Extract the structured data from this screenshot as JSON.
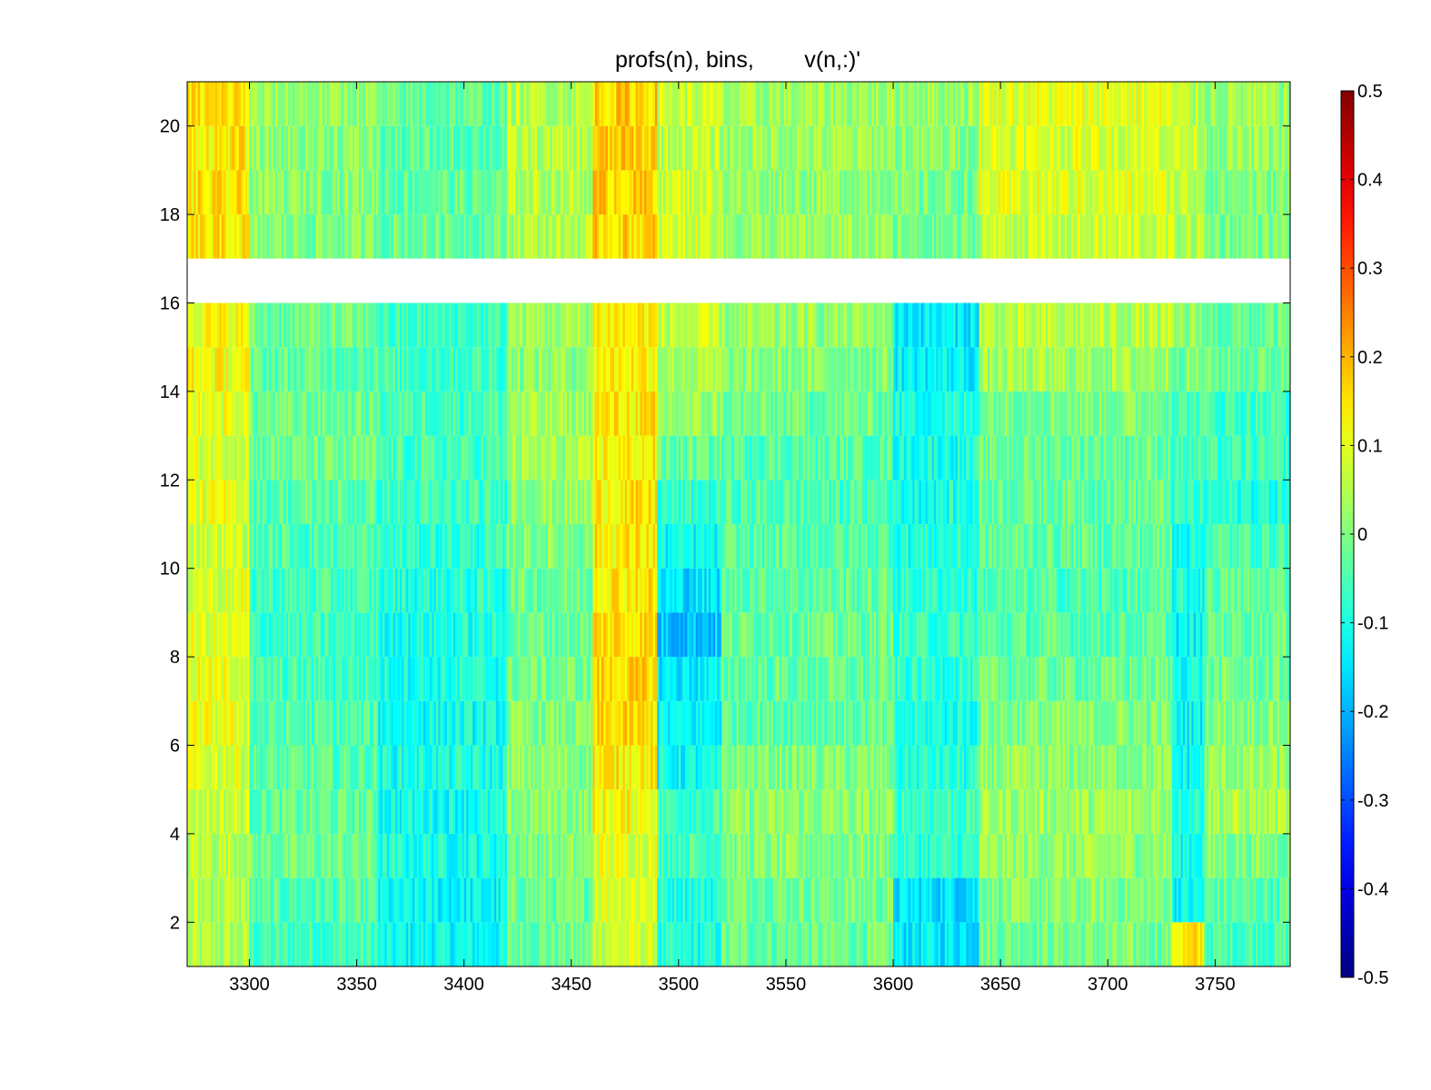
{
  "chart_data": {
    "type": "heatmap",
    "title": "profs(n), bins,        v(n,:)'",
    "xlabel": "",
    "ylabel": "",
    "xlim": [
      3271,
      3785
    ],
    "ylim": [
      1,
      21
    ],
    "x_ticks": [
      3300,
      3350,
      3400,
      3450,
      3500,
      3550,
      3600,
      3650,
      3700,
      3750
    ],
    "y_ticks": [
      2,
      4,
      6,
      8,
      10,
      12,
      14,
      16,
      18,
      20
    ],
    "colorbar": {
      "colormap": "jet",
      "clim": [
        -0.5,
        0.5
      ],
      "ticks": [
        0.5,
        0.4,
        0.3,
        0.2,
        0.1,
        0,
        -0.1,
        -0.2,
        -0.3,
        -0.4,
        -0.5
      ],
      "tick_labels": [
        "0.5",
        "0.4",
        "0.3",
        "0.2",
        "0.1",
        "0",
        "-0.1",
        "-0.2",
        "-0.3",
        "-0.4",
        "-0.5"
      ]
    },
    "missing_bins": [
      16
    ],
    "columns_x_range": [
      3271,
      3785
    ],
    "column_count": 514,
    "bins": [
      {
        "bin": 1,
        "base": 0.0,
        "segments": [
          [
            3271,
            3300,
            0.04
          ],
          [
            3300,
            3360,
            -0.06
          ],
          [
            3360,
            3420,
            -0.12
          ],
          [
            3420,
            3460,
            -0.02
          ],
          [
            3460,
            3490,
            0.08
          ],
          [
            3490,
            3520,
            -0.1
          ],
          [
            3520,
            3600,
            -0.02
          ],
          [
            3600,
            3640,
            -0.14
          ],
          [
            3640,
            3730,
            -0.01
          ],
          [
            3730,
            3745,
            0.14
          ],
          [
            3745,
            3785,
            -0.05
          ]
        ]
      },
      {
        "bin": 2,
        "base": 0.0,
        "segments": [
          [
            3271,
            3300,
            0.05
          ],
          [
            3300,
            3360,
            -0.05
          ],
          [
            3360,
            3420,
            -0.13
          ],
          [
            3420,
            3460,
            -0.02
          ],
          [
            3460,
            3490,
            0.1
          ],
          [
            3490,
            3520,
            -0.09
          ],
          [
            3520,
            3600,
            -0.01
          ],
          [
            3600,
            3640,
            -0.15
          ],
          [
            3640,
            3730,
            0.0
          ],
          [
            3730,
            3745,
            -0.12
          ],
          [
            3745,
            3785,
            -0.04
          ]
        ]
      },
      {
        "bin": 3,
        "base": 0.0,
        "segments": [
          [
            3271,
            3300,
            0.06
          ],
          [
            3300,
            3360,
            -0.02
          ],
          [
            3360,
            3420,
            -0.1
          ],
          [
            3420,
            3460,
            0.0
          ],
          [
            3460,
            3490,
            0.1
          ],
          [
            3490,
            3520,
            -0.05
          ],
          [
            3520,
            3600,
            0.0
          ],
          [
            3600,
            3640,
            -0.08
          ],
          [
            3640,
            3730,
            0.02
          ],
          [
            3730,
            3745,
            -0.1
          ],
          [
            3745,
            3785,
            0.0
          ]
        ]
      },
      {
        "bin": 4,
        "base": 0.01,
        "segments": [
          [
            3271,
            3300,
            0.07
          ],
          [
            3300,
            3360,
            -0.03
          ],
          [
            3360,
            3420,
            -0.11
          ],
          [
            3420,
            3460,
            0.01
          ],
          [
            3460,
            3490,
            0.12
          ],
          [
            3490,
            3520,
            -0.06
          ],
          [
            3520,
            3600,
            0.01
          ],
          [
            3600,
            3640,
            -0.06
          ],
          [
            3640,
            3730,
            0.03
          ],
          [
            3730,
            3745,
            -0.08
          ],
          [
            3745,
            3785,
            0.04
          ]
        ]
      },
      {
        "bin": 5,
        "base": 0.01,
        "segments": [
          [
            3271,
            3300,
            0.09
          ],
          [
            3300,
            3360,
            -0.04
          ],
          [
            3360,
            3420,
            -0.1
          ],
          [
            3420,
            3460,
            0.01
          ],
          [
            3460,
            3490,
            0.14
          ],
          [
            3490,
            3520,
            -0.12
          ],
          [
            3520,
            3600,
            0.0
          ],
          [
            3600,
            3640,
            -0.09
          ],
          [
            3640,
            3730,
            0.01
          ],
          [
            3730,
            3745,
            -0.12
          ],
          [
            3745,
            3785,
            0.02
          ]
        ]
      },
      {
        "bin": 6,
        "base": 0.01,
        "segments": [
          [
            3271,
            3300,
            0.1
          ],
          [
            3300,
            3360,
            -0.05
          ],
          [
            3360,
            3420,
            -0.11
          ],
          [
            3420,
            3460,
            0.0
          ],
          [
            3460,
            3490,
            0.15
          ],
          [
            3490,
            3520,
            -0.13
          ],
          [
            3520,
            3600,
            -0.03
          ],
          [
            3600,
            3640,
            -0.1
          ],
          [
            3640,
            3730,
            0.0
          ],
          [
            3730,
            3745,
            -0.12
          ],
          [
            3745,
            3785,
            0.01
          ]
        ]
      },
      {
        "bin": 7,
        "base": 0.0,
        "segments": [
          [
            3271,
            3300,
            0.1
          ],
          [
            3300,
            3360,
            -0.06
          ],
          [
            3360,
            3420,
            -0.1
          ],
          [
            3420,
            3460,
            -0.01
          ],
          [
            3460,
            3490,
            0.16
          ],
          [
            3490,
            3520,
            -0.14
          ],
          [
            3520,
            3600,
            -0.03
          ],
          [
            3600,
            3640,
            -0.08
          ],
          [
            3640,
            3730,
            -0.02
          ],
          [
            3730,
            3745,
            -0.1
          ],
          [
            3745,
            3785,
            -0.02
          ]
        ]
      },
      {
        "bin": 8,
        "base": 0.0,
        "segments": [
          [
            3271,
            3300,
            0.09
          ],
          [
            3300,
            3360,
            -0.07
          ],
          [
            3360,
            3420,
            -0.1
          ],
          [
            3420,
            3460,
            -0.02
          ],
          [
            3460,
            3490,
            0.16
          ],
          [
            3490,
            3520,
            -0.18
          ],
          [
            3520,
            3600,
            -0.02
          ],
          [
            3600,
            3640,
            -0.07
          ],
          [
            3640,
            3730,
            -0.04
          ],
          [
            3730,
            3745,
            -0.13
          ],
          [
            3745,
            3785,
            -0.02
          ]
        ]
      },
      {
        "bin": 9,
        "base": 0.0,
        "segments": [
          [
            3271,
            3300,
            0.09
          ],
          [
            3300,
            3360,
            -0.06
          ],
          [
            3360,
            3420,
            -0.09
          ],
          [
            3420,
            3460,
            -0.02
          ],
          [
            3460,
            3490,
            0.15
          ],
          [
            3490,
            3520,
            -0.15
          ],
          [
            3520,
            3600,
            -0.03
          ],
          [
            3600,
            3640,
            -0.08
          ],
          [
            3640,
            3730,
            -0.05
          ],
          [
            3730,
            3745,
            -0.1
          ],
          [
            3745,
            3785,
            -0.03
          ]
        ]
      },
      {
        "bin": 10,
        "base": 0.0,
        "segments": [
          [
            3271,
            3300,
            0.08
          ],
          [
            3300,
            3360,
            -0.05
          ],
          [
            3360,
            3420,
            -0.08
          ],
          [
            3420,
            3460,
            0.0
          ],
          [
            3460,
            3490,
            0.14
          ],
          [
            3490,
            3520,
            -0.12
          ],
          [
            3520,
            3600,
            -0.04
          ],
          [
            3600,
            3640,
            -0.09
          ],
          [
            3640,
            3730,
            -0.03
          ],
          [
            3730,
            3745,
            -0.1
          ],
          [
            3745,
            3785,
            -0.05
          ]
        ]
      },
      {
        "bin": 11,
        "base": 0.0,
        "segments": [
          [
            3271,
            3300,
            0.1
          ],
          [
            3300,
            3360,
            -0.04
          ],
          [
            3360,
            3420,
            -0.07
          ],
          [
            3420,
            3460,
            0.02
          ],
          [
            3460,
            3490,
            0.14
          ],
          [
            3490,
            3520,
            -0.08
          ],
          [
            3520,
            3600,
            -0.05
          ],
          [
            3600,
            3640,
            -0.1
          ],
          [
            3640,
            3730,
            -0.02
          ],
          [
            3730,
            3745,
            -0.08
          ],
          [
            3745,
            3785,
            -0.09
          ]
        ]
      },
      {
        "bin": 12,
        "base": 0.0,
        "segments": [
          [
            3271,
            3300,
            0.09
          ],
          [
            3300,
            3360,
            -0.02
          ],
          [
            3360,
            3420,
            -0.06
          ],
          [
            3420,
            3460,
            0.03
          ],
          [
            3460,
            3490,
            0.13
          ],
          [
            3490,
            3520,
            -0.03
          ],
          [
            3520,
            3600,
            -0.04
          ],
          [
            3600,
            3640,
            -0.1
          ],
          [
            3640,
            3730,
            -0.02
          ],
          [
            3730,
            3745,
            -0.06
          ],
          [
            3745,
            3785,
            -0.07
          ]
        ]
      },
      {
        "bin": 13,
        "base": 0.01,
        "segments": [
          [
            3271,
            3300,
            0.1
          ],
          [
            3300,
            3360,
            -0.02
          ],
          [
            3360,
            3420,
            -0.05
          ],
          [
            3420,
            3460,
            0.03
          ],
          [
            3460,
            3490,
            0.14
          ],
          [
            3490,
            3520,
            0.02
          ],
          [
            3520,
            3600,
            -0.02
          ],
          [
            3600,
            3640,
            -0.1
          ],
          [
            3640,
            3730,
            0.0
          ],
          [
            3730,
            3745,
            -0.05
          ],
          [
            3745,
            3785,
            -0.06
          ]
        ]
      },
      {
        "bin": 14,
        "base": 0.01,
        "segments": [
          [
            3271,
            3300,
            0.12
          ],
          [
            3300,
            3360,
            -0.03
          ],
          [
            3360,
            3420,
            -0.06
          ],
          [
            3420,
            3460,
            0.02
          ],
          [
            3460,
            3490,
            0.14
          ],
          [
            3490,
            3520,
            0.04
          ],
          [
            3520,
            3600,
            0.0
          ],
          [
            3600,
            3640,
            -0.13
          ],
          [
            3640,
            3730,
            0.03
          ],
          [
            3730,
            3745,
            0.0
          ],
          [
            3745,
            3785,
            -0.02
          ]
        ]
      },
      {
        "bin": 15,
        "base": 0.02,
        "segments": [
          [
            3271,
            3300,
            0.12
          ],
          [
            3300,
            3360,
            -0.02
          ],
          [
            3360,
            3420,
            -0.07
          ],
          [
            3420,
            3460,
            0.03
          ],
          [
            3460,
            3490,
            0.14
          ],
          [
            3490,
            3520,
            0.06
          ],
          [
            3520,
            3600,
            0.02
          ],
          [
            3600,
            3640,
            -0.14
          ],
          [
            3640,
            3730,
            0.05
          ],
          [
            3730,
            3745,
            0.01
          ],
          [
            3745,
            3785,
            -0.03
          ]
        ]
      },
      {
        "bin": 17,
        "base": 0.04,
        "segments": [
          [
            3271,
            3300,
            0.14
          ],
          [
            3300,
            3360,
            0.0
          ],
          [
            3360,
            3420,
            -0.02
          ],
          [
            3420,
            3460,
            0.05
          ],
          [
            3460,
            3490,
            0.16
          ],
          [
            3490,
            3520,
            0.08
          ],
          [
            3520,
            3600,
            0.02
          ],
          [
            3600,
            3640,
            -0.02
          ],
          [
            3640,
            3730,
            0.07
          ],
          [
            3730,
            3745,
            0.05
          ],
          [
            3745,
            3785,
            0.0
          ]
        ]
      },
      {
        "bin": 18,
        "base": 0.04,
        "segments": [
          [
            3271,
            3300,
            0.14
          ],
          [
            3300,
            3360,
            0.01
          ],
          [
            3360,
            3420,
            -0.03
          ],
          [
            3420,
            3460,
            0.05
          ],
          [
            3460,
            3490,
            0.17
          ],
          [
            3490,
            3520,
            0.08
          ],
          [
            3520,
            3600,
            0.02
          ],
          [
            3600,
            3640,
            -0.01
          ],
          [
            3640,
            3730,
            0.09
          ],
          [
            3730,
            3745,
            0.06
          ],
          [
            3745,
            3785,
            0.0
          ]
        ]
      },
      {
        "bin": 19,
        "base": 0.04,
        "segments": [
          [
            3271,
            3300,
            0.14
          ],
          [
            3300,
            3360,
            0.01
          ],
          [
            3360,
            3420,
            -0.04
          ],
          [
            3420,
            3460,
            0.05
          ],
          [
            3460,
            3490,
            0.17
          ],
          [
            3490,
            3520,
            0.06
          ],
          [
            3520,
            3600,
            0.03
          ],
          [
            3600,
            3640,
            0.01
          ],
          [
            3640,
            3730,
            0.09
          ],
          [
            3730,
            3745,
            0.07
          ],
          [
            3745,
            3785,
            0.02
          ]
        ]
      },
      {
        "bin": 20,
        "base": 0.04,
        "segments": [
          [
            3271,
            3300,
            0.15
          ],
          [
            3300,
            3360,
            0.02
          ],
          [
            3360,
            3420,
            -0.03
          ],
          [
            3420,
            3460,
            0.05
          ],
          [
            3460,
            3490,
            0.17
          ],
          [
            3490,
            3520,
            0.07
          ],
          [
            3520,
            3600,
            0.03
          ],
          [
            3600,
            3640,
            0.03
          ],
          [
            3640,
            3730,
            0.1
          ],
          [
            3730,
            3745,
            0.05
          ],
          [
            3745,
            3785,
            0.03
          ]
        ]
      }
    ]
  }
}
